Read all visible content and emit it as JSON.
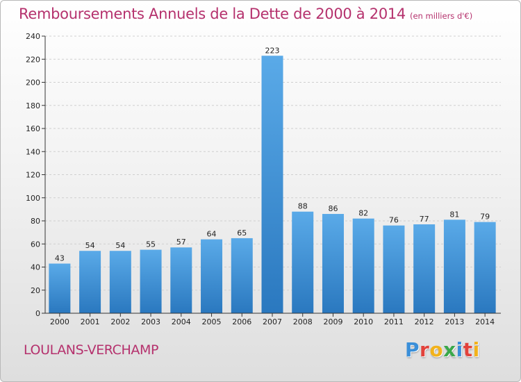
{
  "header": {
    "title": "Remboursements Annuels de la Dette de 2000 à 2014",
    "subtitle": "(en milliers d'€)"
  },
  "footer": {
    "commune": "LOULANS-VERCHAMP",
    "logo_letters": [
      {
        "char": "P",
        "color": "#3a8fd9"
      },
      {
        "char": "r",
        "color": "#e2423b"
      },
      {
        "char": "o",
        "color": "#f2b21b"
      },
      {
        "char": "x",
        "color": "#3aa84a"
      },
      {
        "char": "i",
        "color": "#3a8fd9"
      },
      {
        "char": "t",
        "color": "#e2423b"
      },
      {
        "char": "i",
        "color": "#f2b21b"
      }
    ]
  },
  "chart_data": {
    "type": "bar",
    "title": "Remboursements Annuels de la Dette de 2000 à 2014",
    "subtitle": "(en milliers d'€)",
    "categories": [
      "2000",
      "2001",
      "2002",
      "2003",
      "2004",
      "2005",
      "2006",
      "2007",
      "2008",
      "2009",
      "2010",
      "2011",
      "2012",
      "2013",
      "2014"
    ],
    "values": [
      43,
      54,
      54,
      55,
      57,
      64,
      65,
      223,
      88,
      86,
      82,
      76,
      77,
      81,
      79
    ],
    "ylim": [
      0,
      240
    ],
    "yticks": [
      0,
      20,
      40,
      60,
      80,
      100,
      120,
      140,
      160,
      180,
      200,
      220,
      240
    ],
    "grid": true,
    "bar_color": "#4f9fdf",
    "bar_color_dark": "#2a78bf"
  }
}
